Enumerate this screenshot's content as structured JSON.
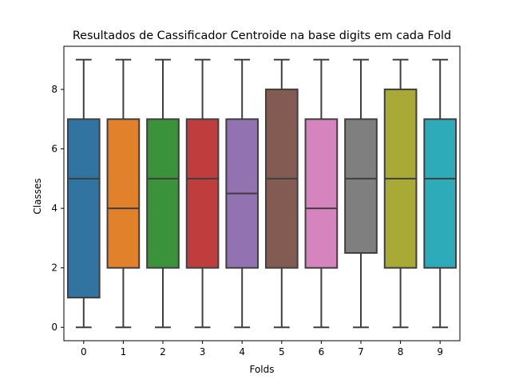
{
  "chart_data": {
    "type": "box",
    "title": "Resultados de Cassificador Centroide na base digits em cada Fold",
    "xlabel": "Folds",
    "ylabel": "Classes",
    "categories": [
      "0",
      "1",
      "2",
      "3",
      "4",
      "5",
      "6",
      "7",
      "8",
      "9"
    ],
    "ylim": [
      -0.45,
      9.45
    ],
    "yticks": [
      0,
      2,
      4,
      6,
      8
    ],
    "grid": false,
    "boxes": [
      {
        "category": "0",
        "min": 0,
        "q1": 1,
        "median": 5,
        "q3": 7,
        "max": 9,
        "color": "#3274a1"
      },
      {
        "category": "1",
        "min": 0,
        "q1": 2,
        "median": 4,
        "q3": 7,
        "max": 9,
        "color": "#e1812c"
      },
      {
        "category": "2",
        "min": 0,
        "q1": 2,
        "median": 5,
        "q3": 7,
        "max": 9,
        "color": "#3a923a"
      },
      {
        "category": "3",
        "min": 0,
        "q1": 2,
        "median": 5,
        "q3": 7,
        "max": 9,
        "color": "#c03d3e"
      },
      {
        "category": "4",
        "min": 0,
        "q1": 2,
        "median": 4.5,
        "q3": 7,
        "max": 9,
        "color": "#9372b2"
      },
      {
        "category": "5",
        "min": 0,
        "q1": 2,
        "median": 5,
        "q3": 8,
        "max": 9,
        "color": "#845b53"
      },
      {
        "category": "6",
        "min": 0,
        "q1": 2,
        "median": 4,
        "q3": 7,
        "max": 9,
        "color": "#d684bd"
      },
      {
        "category": "7",
        "min": 0,
        "q1": 2.5,
        "median": 5,
        "q3": 7,
        "max": 9,
        "color": "#7f7f7f"
      },
      {
        "category": "8",
        "min": 0,
        "q1": 2,
        "median": 5,
        "q3": 8,
        "max": 9,
        "color": "#a9aa35"
      },
      {
        "category": "9",
        "min": 0,
        "q1": 2,
        "median": 5,
        "q3": 7,
        "max": 9,
        "color": "#2eabb8"
      }
    ]
  }
}
